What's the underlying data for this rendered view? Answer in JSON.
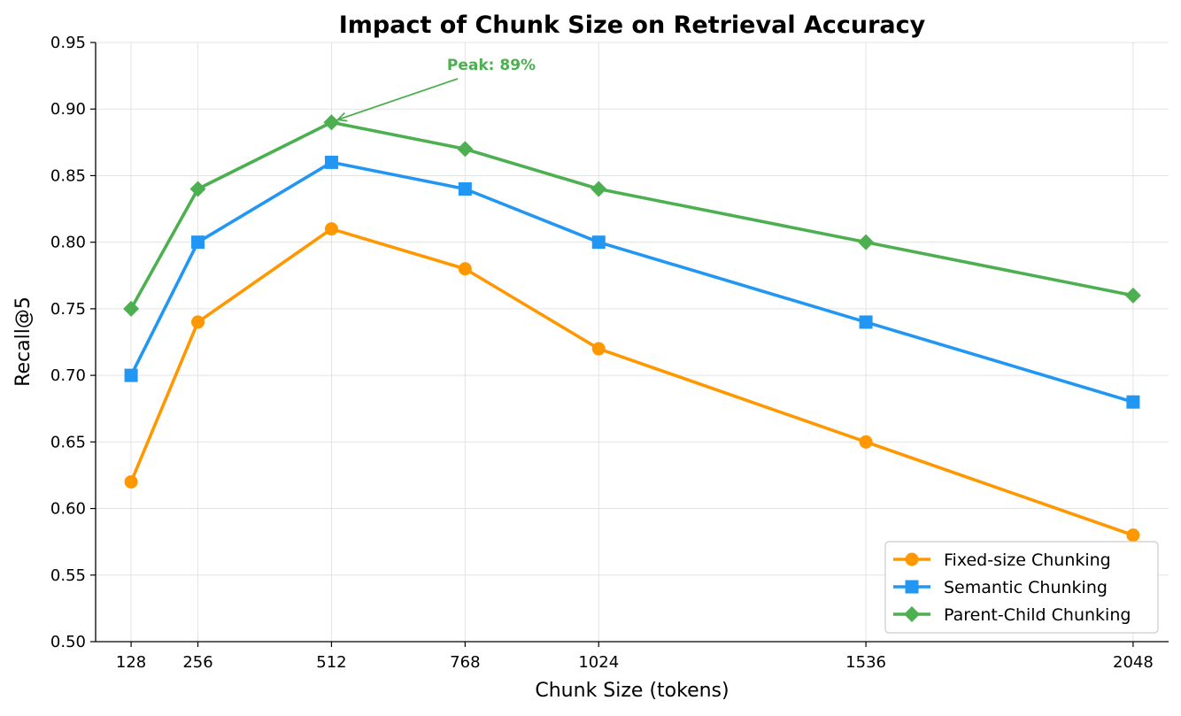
{
  "chart_data": {
    "type": "line",
    "title": "Impact of Chunk Size on Retrieval Accuracy",
    "xlabel": "Chunk Size (tokens)",
    "ylabel": "Recall@5",
    "x": [
      128,
      256,
      512,
      768,
      1024,
      1536,
      2048
    ],
    "x_tick_labels": [
      "128",
      "256",
      "512",
      "768",
      "1024",
      "1536",
      "2048"
    ],
    "y_ticks": [
      0.5,
      0.55,
      0.6,
      0.65,
      0.7,
      0.75,
      0.8,
      0.85,
      0.9,
      0.95
    ],
    "y_tick_labels": [
      "0.50",
      "0.55",
      "0.60",
      "0.65",
      "0.70",
      "0.75",
      "0.80",
      "0.85",
      "0.90",
      "0.95"
    ],
    "ylim": [
      0.5,
      0.95
    ],
    "grid": true,
    "legend_position": "bottom-right",
    "series": [
      {
        "name": "Fixed-size Chunking",
        "color": "#FF9800",
        "marker": "circle",
        "values": [
          0.62,
          0.74,
          0.81,
          0.78,
          0.72,
          0.65,
          0.58
        ]
      },
      {
        "name": "Semantic Chunking",
        "color": "#2196F3",
        "marker": "square",
        "values": [
          0.7,
          0.8,
          0.86,
          0.84,
          0.8,
          0.74,
          0.68
        ]
      },
      {
        "name": "Parent-Child Chunking",
        "color": "#4CAF50",
        "marker": "diamond",
        "values": [
          0.75,
          0.84,
          0.89,
          0.87,
          0.84,
          0.8,
          0.76
        ]
      }
    ],
    "annotations": [
      {
        "text": "Peak: 89%",
        "x": 512,
        "y": 0.89,
        "color": "#4CAF50"
      }
    ]
  }
}
